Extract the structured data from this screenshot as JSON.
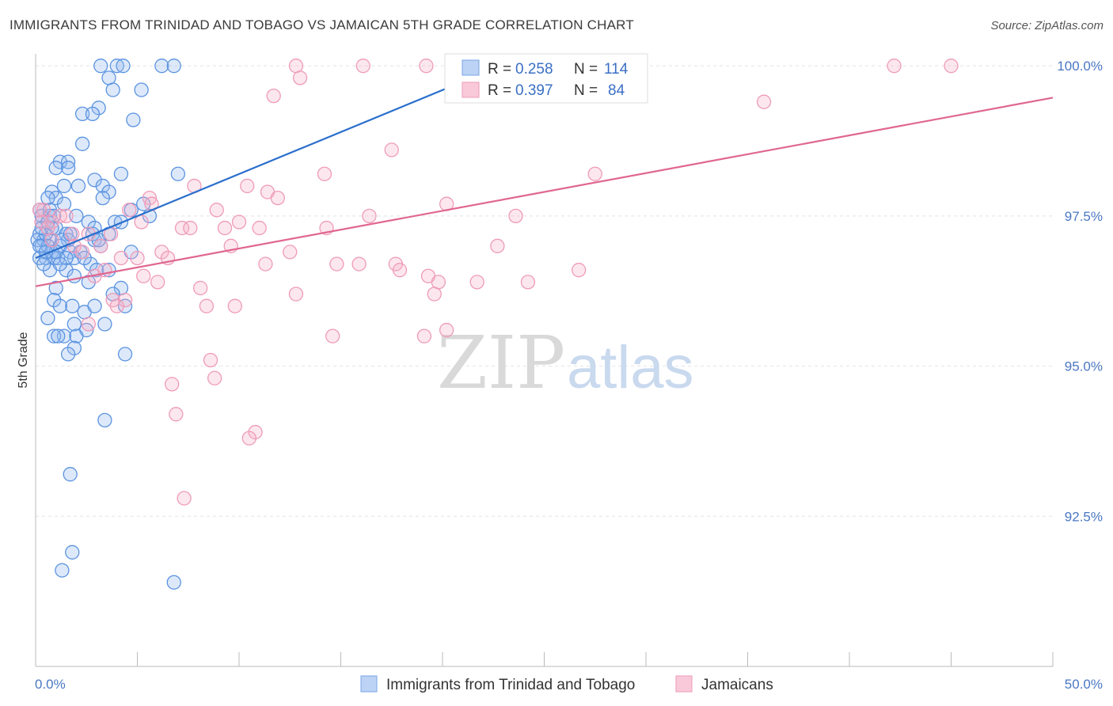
{
  "title": "IMMIGRANTS FROM TRINIDAD AND TOBAGO VS JAMAICAN 5TH GRADE CORRELATION CHART",
  "source": "Source: ZipAtlas.com",
  "watermark": {
    "zip": "ZIP",
    "atlas": "atlas"
  },
  "colors": {
    "blue": "#5b93e0",
    "blue_line": "#2a6fcc",
    "pink": "#f08db0",
    "pink_line": "#e06690"
  },
  "legend": {
    "r_label": "R =",
    "n_label": "N =",
    "entries": [
      {
        "r": "0.258",
        "n": "114"
      },
      {
        "r": "0.397",
        "n": "84"
      }
    ]
  },
  "chart_data": {
    "type": "scatter",
    "title": "IMMIGRANTS FROM TRINIDAD AND TOBAGO VS JAMAICAN 5TH GRADE CORRELATION CHART",
    "xlabel": "",
    "ylabel": "5th Grade",
    "xlim": [
      0,
      50
    ],
    "ylim": [
      90.0,
      100.2
    ],
    "x_tick_labels": [
      "0.0%",
      "50.0%"
    ],
    "y_ticks": [
      92.5,
      95.0,
      97.5,
      100.0
    ],
    "y_tick_labels": [
      "92.5%",
      "95.0%",
      "97.5%",
      "100.0%"
    ],
    "grid": true,
    "legend_position": "top-center",
    "series": [
      {
        "name": "Immigrants from Trinidad and Tobago",
        "color": "#5b93e0",
        "trend": {
          "x": [
            0.0,
            23.6
          ],
          "y": [
            96.8,
            100.1
          ]
        },
        "points": [
          [
            3.2,
            100
          ],
          [
            4.0,
            100
          ],
          [
            4.3,
            100
          ],
          [
            6.2,
            100
          ],
          [
            6.8,
            100
          ],
          [
            3.6,
            99.8
          ],
          [
            5.2,
            99.6
          ],
          [
            3.8,
            99.6
          ],
          [
            3.1,
            99.3
          ],
          [
            2.3,
            99.2
          ],
          [
            2.8,
            99.2
          ],
          [
            4.8,
            99.1
          ],
          [
            2.3,
            98.7
          ],
          [
            1.2,
            98.4
          ],
          [
            1.6,
            98.4
          ],
          [
            1.0,
            98.3
          ],
          [
            1.6,
            98.3
          ],
          [
            4.2,
            98.2
          ],
          [
            7.0,
            98.2
          ],
          [
            2.9,
            98.1
          ],
          [
            1.4,
            98.0
          ],
          [
            2.1,
            98.0
          ],
          [
            3.3,
            98.0
          ],
          [
            3.6,
            97.9
          ],
          [
            0.8,
            97.9
          ],
          [
            1.0,
            97.8
          ],
          [
            0.6,
            97.8
          ],
          [
            3.3,
            97.8
          ],
          [
            1.4,
            97.7
          ],
          [
            5.3,
            97.7
          ],
          [
            0.2,
            97.6
          ],
          [
            0.7,
            97.6
          ],
          [
            4.7,
            97.6
          ],
          [
            0.3,
            97.5
          ],
          [
            0.7,
            97.5
          ],
          [
            2.0,
            97.5
          ],
          [
            5.6,
            97.5
          ],
          [
            2.6,
            97.4
          ],
          [
            3.9,
            97.4
          ],
          [
            4.2,
            97.4
          ],
          [
            0.3,
            97.4
          ],
          [
            1.0,
            97.3
          ],
          [
            2.9,
            97.3
          ],
          [
            3.6,
            97.2
          ],
          [
            1.5,
            97.2
          ],
          [
            0.2,
            97.2
          ],
          [
            0.4,
            97.1
          ],
          [
            0.7,
            97.1
          ],
          [
            1.6,
            97.1
          ],
          [
            2.9,
            97.1
          ],
          [
            0.1,
            97.1
          ],
          [
            1.2,
            97.0
          ],
          [
            3.2,
            97.0
          ],
          [
            0.3,
            97.0
          ],
          [
            0.8,
            96.9
          ],
          [
            1.7,
            96.9
          ],
          [
            4.7,
            96.9
          ],
          [
            0.5,
            96.8
          ],
          [
            1.1,
            96.8
          ],
          [
            1.9,
            96.8
          ],
          [
            0.2,
            96.8
          ],
          [
            0.9,
            96.8
          ],
          [
            2.7,
            96.7
          ],
          [
            3.0,
            96.6
          ],
          [
            1.5,
            96.6
          ],
          [
            0.7,
            96.6
          ],
          [
            3.6,
            96.6
          ],
          [
            1.9,
            96.5
          ],
          [
            2.6,
            96.4
          ],
          [
            1.0,
            96.3
          ],
          [
            4.2,
            96.3
          ],
          [
            0.9,
            96.1
          ],
          [
            4.4,
            96.0
          ],
          [
            1.8,
            96.0
          ],
          [
            1.2,
            96.0
          ],
          [
            2.4,
            95.9
          ],
          [
            2.9,
            96.0
          ],
          [
            0.6,
            95.8
          ],
          [
            1.9,
            95.7
          ],
          [
            3.4,
            95.7
          ],
          [
            2.5,
            95.6
          ],
          [
            1.4,
            95.5
          ],
          [
            0.9,
            95.5
          ],
          [
            2.0,
            95.5
          ],
          [
            1.1,
            95.5
          ],
          [
            1.9,
            95.3
          ],
          [
            1.6,
            95.2
          ],
          [
            4.4,
            95.2
          ],
          [
            3.4,
            94.1
          ],
          [
            1.7,
            93.2
          ],
          [
            1.8,
            91.9
          ],
          [
            1.3,
            91.6
          ],
          [
            6.8,
            91.4
          ],
          [
            0.5,
            97.2
          ],
          [
            0.3,
            97.3
          ],
          [
            0.9,
            97.5
          ],
          [
            1.3,
            97.1
          ],
          [
            0.6,
            97.0
          ],
          [
            2.2,
            96.9
          ],
          [
            1.0,
            96.9
          ],
          [
            0.4,
            96.7
          ],
          [
            2.8,
            97.2
          ],
          [
            3.8,
            96.2
          ],
          [
            1.5,
            96.8
          ],
          [
            0.2,
            97.0
          ],
          [
            0.8,
            97.3
          ],
          [
            1.2,
            96.7
          ],
          [
            2.4,
            96.8
          ],
          [
            3.1,
            97.1
          ],
          [
            0.5,
            96.9
          ],
          [
            1.7,
            97.2
          ],
          [
            0.6,
            97.4
          ]
        ]
      },
      {
        "name": "Jamaicans",
        "color": "#f08db0",
        "trend": {
          "x": [
            0.0,
            50.0
          ],
          "y": [
            96.33,
            99.47
          ]
        },
        "points": [
          [
            12.8,
            100
          ],
          [
            16.1,
            100
          ],
          [
            19.2,
            100
          ],
          [
            26.9,
            100
          ],
          [
            42.2,
            100
          ],
          [
            45.0,
            100
          ],
          [
            13.0,
            99.8
          ],
          [
            11.7,
            99.5
          ],
          [
            35.8,
            99.4
          ],
          [
            17.5,
            98.6
          ],
          [
            14.2,
            98.2
          ],
          [
            27.5,
            98.2
          ],
          [
            7.8,
            98.0
          ],
          [
            10.4,
            98.0
          ],
          [
            11.4,
            97.9
          ],
          [
            11.9,
            97.8
          ],
          [
            5.6,
            97.8
          ],
          [
            5.7,
            97.7
          ],
          [
            20.2,
            97.7
          ],
          [
            0.4,
            97.6
          ],
          [
            1.2,
            97.5
          ],
          [
            8.9,
            97.6
          ],
          [
            10.0,
            97.4
          ],
          [
            16.4,
            97.5
          ],
          [
            23.6,
            97.5
          ],
          [
            0.8,
            97.4
          ],
          [
            5.2,
            97.4
          ],
          [
            7.2,
            97.3
          ],
          [
            7.6,
            97.3
          ],
          [
            9.3,
            97.3
          ],
          [
            11.0,
            97.3
          ],
          [
            14.3,
            97.3
          ],
          [
            1.8,
            97.2
          ],
          [
            3.7,
            97.2
          ],
          [
            2.6,
            97.2
          ],
          [
            9.6,
            97.0
          ],
          [
            22.7,
            97.0
          ],
          [
            6.2,
            96.9
          ],
          [
            3.2,
            97.0
          ],
          [
            0.8,
            97.1
          ],
          [
            12.5,
            96.9
          ],
          [
            6.5,
            96.8
          ],
          [
            4.2,
            96.8
          ],
          [
            5.0,
            96.8
          ],
          [
            11.3,
            96.7
          ],
          [
            14.8,
            96.7
          ],
          [
            15.9,
            96.7
          ],
          [
            17.7,
            96.7
          ],
          [
            17.9,
            96.6
          ],
          [
            26.7,
            96.6
          ],
          [
            2.9,
            96.5
          ],
          [
            5.3,
            96.5
          ],
          [
            19.3,
            96.5
          ],
          [
            6.0,
            96.4
          ],
          [
            19.8,
            96.4
          ],
          [
            21.7,
            96.4
          ],
          [
            24.2,
            96.4
          ],
          [
            8.1,
            96.3
          ],
          [
            12.8,
            96.2
          ],
          [
            19.6,
            96.2
          ],
          [
            3.8,
            96.1
          ],
          [
            4.4,
            96.1
          ],
          [
            8.4,
            96.0
          ],
          [
            9.8,
            96.0
          ],
          [
            4.0,
            96.0
          ],
          [
            2.6,
            95.7
          ],
          [
            20.2,
            95.6
          ],
          [
            14.6,
            95.5
          ],
          [
            19.1,
            95.5
          ],
          [
            8.6,
            95.1
          ],
          [
            8.8,
            94.8
          ],
          [
            6.7,
            94.7
          ],
          [
            6.9,
            94.2
          ],
          [
            10.8,
            93.9
          ],
          [
            10.5,
            93.8
          ],
          [
            7.3,
            92.8
          ],
          [
            0.3,
            97.4
          ],
          [
            1.5,
            97.5
          ],
          [
            0.6,
            97.3
          ],
          [
            3.4,
            96.6
          ],
          [
            0.2,
            97.6
          ],
          [
            1.9,
            97.0
          ],
          [
            2.3,
            96.9
          ],
          [
            4.6,
            97.6
          ]
        ]
      }
    ]
  }
}
